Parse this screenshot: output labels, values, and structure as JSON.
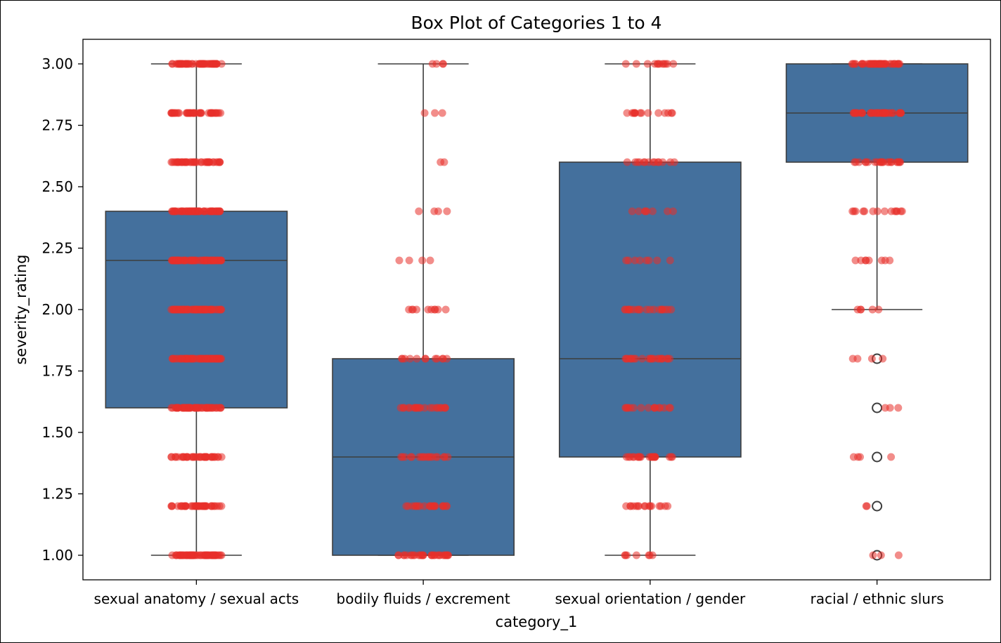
{
  "chart_data": {
    "type": "box",
    "title": "Box Plot of Categories 1 to 4",
    "xlabel": "category_1",
    "ylabel": "severity_rating",
    "categories": [
      "sexual anatomy / sexual acts",
      "bodily fluids / excrement",
      "sexual orientation / gender",
      "racial / ethnic slurs"
    ],
    "ylim": [
      0.9,
      3.1
    ],
    "y_ticks": [
      "1.00",
      "1.25",
      "1.50",
      "1.75",
      "2.00",
      "2.25",
      "2.50",
      "2.75",
      "3.00"
    ],
    "grid": false,
    "legend": "none",
    "box_color": "#44709d",
    "point_color": "#e8302a",
    "boxes": [
      {
        "category": "sexual anatomy / sexual acts",
        "whisker_low": 1.0,
        "q1": 1.6,
        "median": 2.2,
        "q3": 2.4,
        "whisker_high": 3.0,
        "outliers": [],
        "points": [
          {
            "y": 1.0,
            "n": 60
          },
          {
            "y": 1.2,
            "n": 40
          },
          {
            "y": 1.4,
            "n": 40
          },
          {
            "y": 1.6,
            "n": 60
          },
          {
            "y": 1.8,
            "n": 60
          },
          {
            "y": 2.0,
            "n": 60
          },
          {
            "y": 2.2,
            "n": 60
          },
          {
            "y": 2.4,
            "n": 60
          },
          {
            "y": 2.6,
            "n": 40
          },
          {
            "y": 2.8,
            "n": 40
          },
          {
            "y": 3.0,
            "n": 50
          }
        ]
      },
      {
        "category": "bodily fluids / excrement",
        "whisker_low": 1.0,
        "q1": 1.0,
        "median": 1.4,
        "q3": 1.8,
        "whisker_high": 3.0,
        "outliers": [],
        "points": [
          {
            "y": 1.0,
            "n": 30
          },
          {
            "y": 1.2,
            "n": 20
          },
          {
            "y": 1.4,
            "n": 18
          },
          {
            "y": 1.6,
            "n": 22
          },
          {
            "y": 1.8,
            "n": 12
          },
          {
            "y": 2.0,
            "n": 10
          },
          {
            "y": 2.2,
            "n": 4
          },
          {
            "y": 2.4,
            "n": 4
          },
          {
            "y": 2.6,
            "n": 2
          },
          {
            "y": 2.8,
            "n": 3
          },
          {
            "y": 3.0,
            "n": 4
          }
        ]
      },
      {
        "category": "sexual orientation / gender",
        "whisker_low": 1.0,
        "q1": 1.4,
        "median": 1.8,
        "q3": 2.6,
        "whisker_high": 3.0,
        "outliers": [],
        "points": [
          {
            "y": 1.0,
            "n": 7
          },
          {
            "y": 1.2,
            "n": 16
          },
          {
            "y": 1.4,
            "n": 22
          },
          {
            "y": 1.6,
            "n": 16
          },
          {
            "y": 1.8,
            "n": 22
          },
          {
            "y": 2.0,
            "n": 20
          },
          {
            "y": 2.2,
            "n": 8
          },
          {
            "y": 2.4,
            "n": 8
          },
          {
            "y": 2.6,
            "n": 14
          },
          {
            "y": 2.8,
            "n": 14
          },
          {
            "y": 3.0,
            "n": 12
          }
        ]
      },
      {
        "category": "racial / ethnic slurs",
        "whisker_low": 2.0,
        "q1": 2.6,
        "median": 2.8,
        "q3": 3.0,
        "whisker_high": 3.0,
        "outliers": [
          1.0,
          1.2,
          1.4,
          1.6,
          1.8
        ],
        "points": [
          {
            "y": 1.0,
            "n": 3
          },
          {
            "y": 1.2,
            "n": 2
          },
          {
            "y": 1.4,
            "n": 4
          },
          {
            "y": 1.6,
            "n": 3
          },
          {
            "y": 1.8,
            "n": 4
          },
          {
            "y": 2.0,
            "n": 5
          },
          {
            "y": 2.2,
            "n": 8
          },
          {
            "y": 2.4,
            "n": 14
          },
          {
            "y": 2.6,
            "n": 22
          },
          {
            "y": 2.8,
            "n": 40
          },
          {
            "y": 3.0,
            "n": 40
          }
        ]
      }
    ]
  }
}
